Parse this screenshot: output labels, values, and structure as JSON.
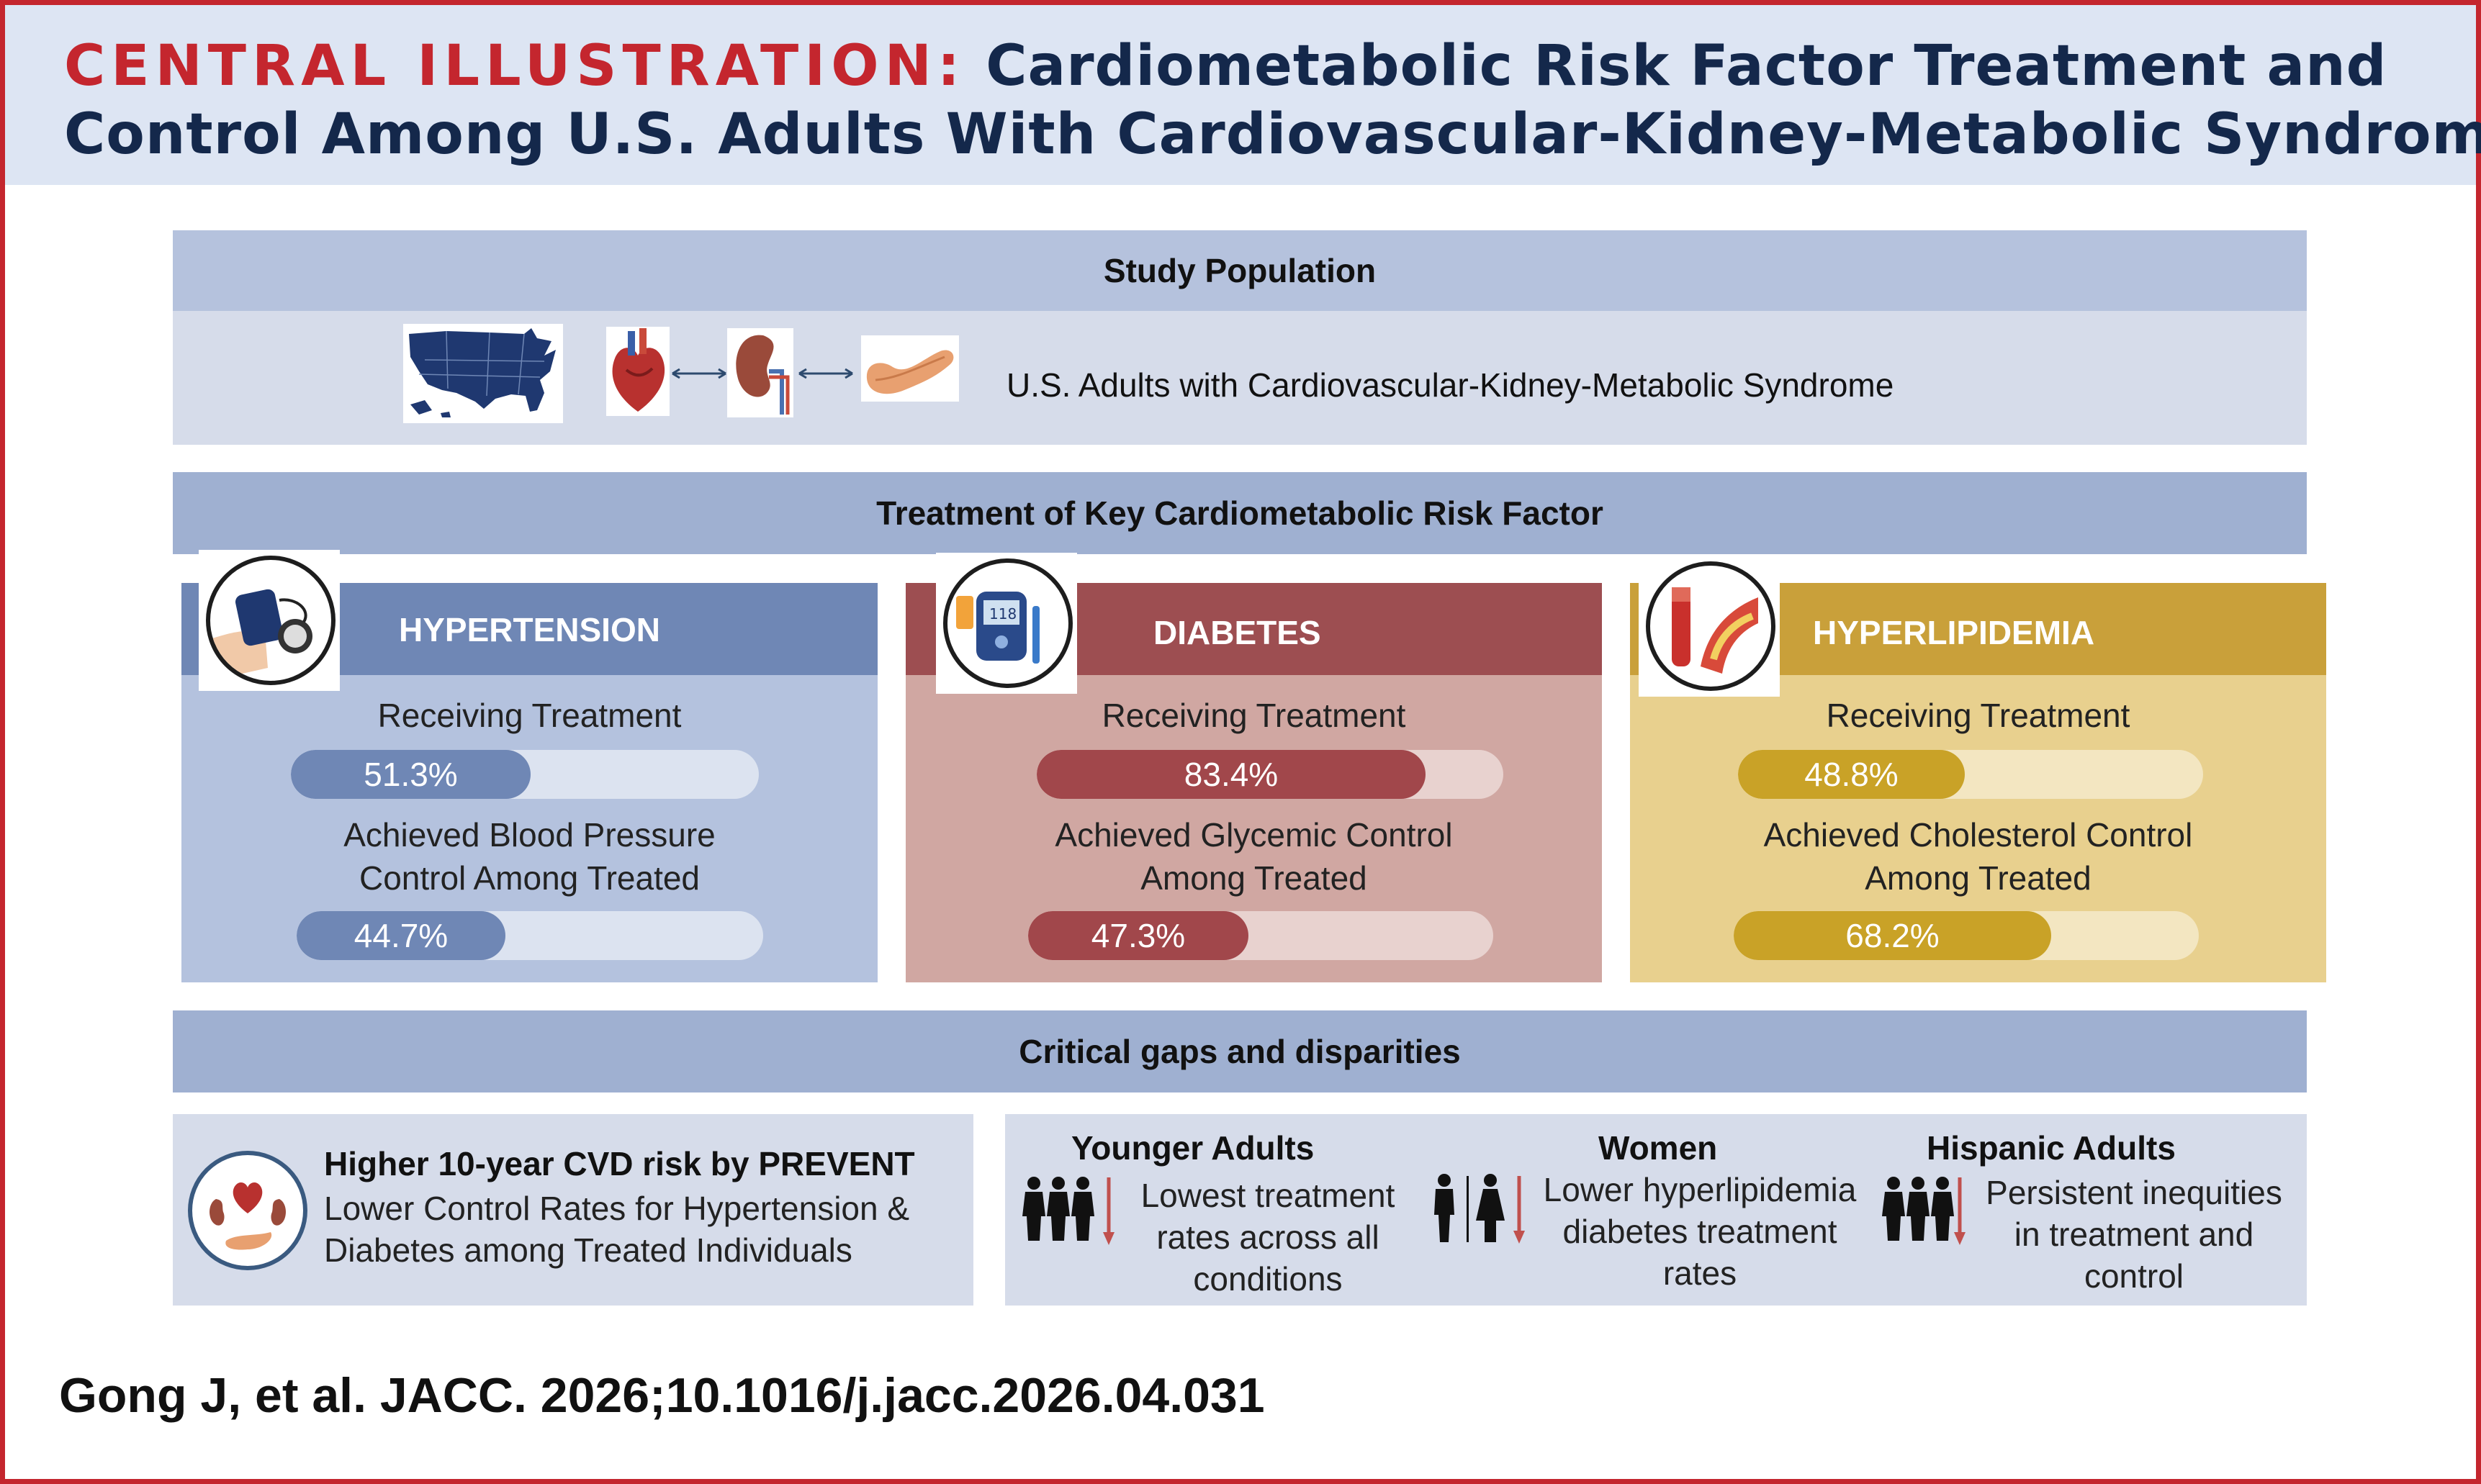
{
  "header": {
    "label": "CENTRAL ILLUSTRATION:",
    "title_line1": "Cardiometabolic Risk Factor Treatment and",
    "title_line2": "Control Among U.S. Adults With Cardiovascular-Kidney-Metabolic Syndrome"
  },
  "study_population": {
    "heading": "Study Population",
    "description": "U.S. Adults with Cardiovascular-Kidney-Metabolic Syndrome",
    "icons": [
      "us-map-icon",
      "heart-icon",
      "kidney-icon",
      "pancreas-icon"
    ]
  },
  "treatment": {
    "heading": "Treatment of Key Cardiometabolic Risk Factor",
    "conditions": [
      {
        "name": "HYPERTENSION",
        "icon": "blood-pressure-cuff-icon",
        "treatment_label": "Receiving Treatment",
        "treatment_value": 51.3,
        "treatment_text": "51.3%",
        "control_label_1": "Achieved Blood Pressure",
        "control_label_2": "Control Among Treated",
        "control_value": 44.7,
        "control_text": "44.7%",
        "colors": {
          "head": "#6f87b5",
          "body": "#b4c2de",
          "fill": "#6f87b5",
          "track": "#dce3f0"
        }
      },
      {
        "name": "DIABETES",
        "icon": "glucose-meter-icon",
        "treatment_label": "Receiving Treatment",
        "treatment_value": 83.4,
        "treatment_text": "83.4%",
        "control_label_1": "Achieved Glycemic Control",
        "control_label_2": "Among Treated",
        "control_value": 47.3,
        "control_text": "47.3%",
        "colors": {
          "head": "#9d4e51",
          "body": "#d0a7a2",
          "fill": "#a1474b",
          "track": "#e8d2cf"
        }
      },
      {
        "name": "HYPERLIPIDEMIA",
        "icon": "artery-plaque-icon",
        "treatment_label": "Receiving Treatment",
        "treatment_value": 48.8,
        "treatment_text": "48.8%",
        "control_label_1": "Achieved Cholesterol Control",
        "control_label_2": "Among Treated",
        "control_value": 68.2,
        "control_text": "68.2%",
        "colors": {
          "head": "#c9a03a",
          "body": "#e8d08e",
          "fill": "#c9a227",
          "track": "#f3e6c1"
        }
      }
    ]
  },
  "gaps": {
    "heading": "Critical gaps and disparities",
    "risk": {
      "title": "Higher 10-year CVD risk by PREVENT",
      "line1": "Lower Control Rates for Hypertension &",
      "line2": "Diabetes among Treated Individuals"
    },
    "groups": [
      {
        "title": "Younger Adults",
        "icon": "adults-group-icon",
        "lines": [
          "Lowest treatment",
          "rates across all",
          "conditions"
        ]
      },
      {
        "title": "Women",
        "icon": "man-woman-icon",
        "lines": [
          "Lower hyperlipidemia",
          "diabetes treatment",
          "rates"
        ]
      },
      {
        "title": "Hispanic Adults",
        "icon": "adults-group-icon",
        "lines": [
          "Persistent inequities",
          "in treatment and",
          "control"
        ]
      }
    ]
  },
  "citation": "Gong J, et al. JACC. 2026;10.1016/j.jacc.2026.04.031"
}
